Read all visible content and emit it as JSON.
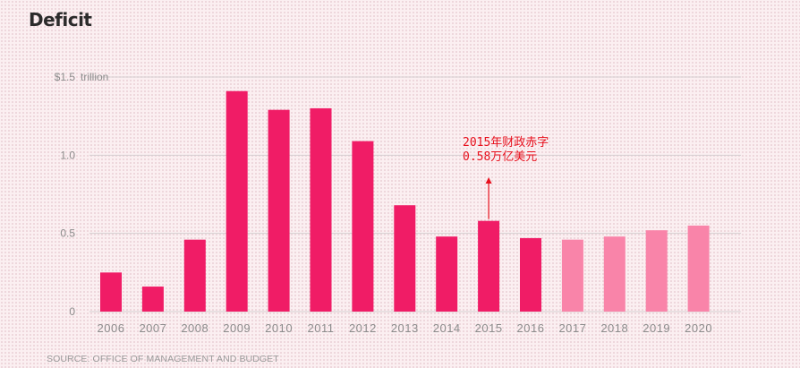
{
  "colors": {
    "actual": "#f01c66",
    "projected": "#f984a9",
    "grid": "#d6cfd1",
    "axis_text": "#8c8c8c",
    "annotation": "#e8101d"
  },
  "chart_data": {
    "type": "bar",
    "title": "Deficit",
    "source": "SOURCE: OFFICE OF MANAGEMENT AND BUDGET",
    "ylim": [
      0,
      1.5
    ],
    "yticks": [
      {
        "value": 0,
        "label": "0"
      },
      {
        "value": 0.5,
        "label": "0.5"
      },
      {
        "value": 1.0,
        "label": "1.0"
      },
      {
        "value": 1.5,
        "label": "$1.5"
      }
    ],
    "y_unit": "trillion",
    "grid": true,
    "categories": [
      "2006",
      "2007",
      "2008",
      "2009",
      "2010",
      "2011",
      "2012",
      "2013",
      "2014",
      "2015",
      "2016",
      "2017",
      "2018",
      "2019",
      "2020"
    ],
    "values": [
      0.25,
      0.16,
      0.46,
      1.41,
      1.29,
      1.3,
      1.09,
      0.68,
      0.48,
      0.58,
      0.47,
      0.46,
      0.48,
      0.52,
      0.55
    ],
    "projected": [
      false,
      false,
      false,
      false,
      false,
      false,
      false,
      false,
      false,
      false,
      false,
      true,
      true,
      true,
      true
    ],
    "annotation": {
      "category": "2015",
      "lines": [
        "2015年财政赤字",
        "0.58万亿美元"
      ]
    }
  }
}
